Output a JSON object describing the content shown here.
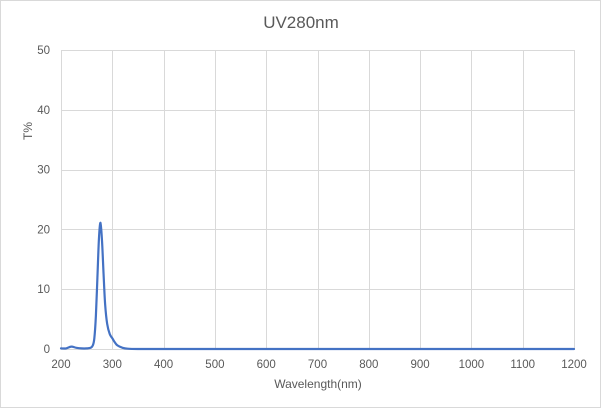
{
  "chart_data": {
    "type": "line",
    "title": "UV280nm",
    "xlabel": "Wavelength(nm)",
    "ylabel": "T%",
    "xlim": [
      200,
      1200
    ],
    "ylim": [
      0,
      50
    ],
    "x_ticks": [
      200,
      300,
      400,
      500,
      600,
      700,
      800,
      900,
      1000,
      1100,
      1200
    ],
    "y_ticks": [
      0,
      10,
      20,
      30,
      40,
      50
    ],
    "grid": true,
    "legend": "none",
    "series": [
      {
        "name": "T%",
        "color": "#4472c4",
        "x": [
          200,
          210,
          220,
          230,
          240,
          250,
          258,
          262,
          265,
          268,
          271,
          274,
          277,
          280,
          283,
          286,
          290,
          295,
          300,
          305,
          310,
          320,
          330,
          350,
          400,
          500,
          600,
          700,
          800,
          900,
          1000,
          1100,
          1200
        ],
        "y": [
          0.1,
          0.1,
          0.4,
          0.2,
          0.1,
          0.1,
          0.2,
          0.6,
          1.8,
          5.5,
          12.0,
          18.5,
          21.1,
          18.0,
          12.5,
          7.5,
          4.2,
          2.5,
          1.8,
          1.1,
          0.6,
          0.2,
          0.05,
          0.0,
          0.0,
          0.0,
          0.0,
          0.0,
          0.0,
          0.0,
          0.0,
          0.0,
          0.0
        ]
      }
    ]
  },
  "style": {
    "line_color": "#4472c4",
    "grid_color": "#d9d9d9",
    "text_color": "#595959",
    "border_color": "#d9d9d9"
  }
}
